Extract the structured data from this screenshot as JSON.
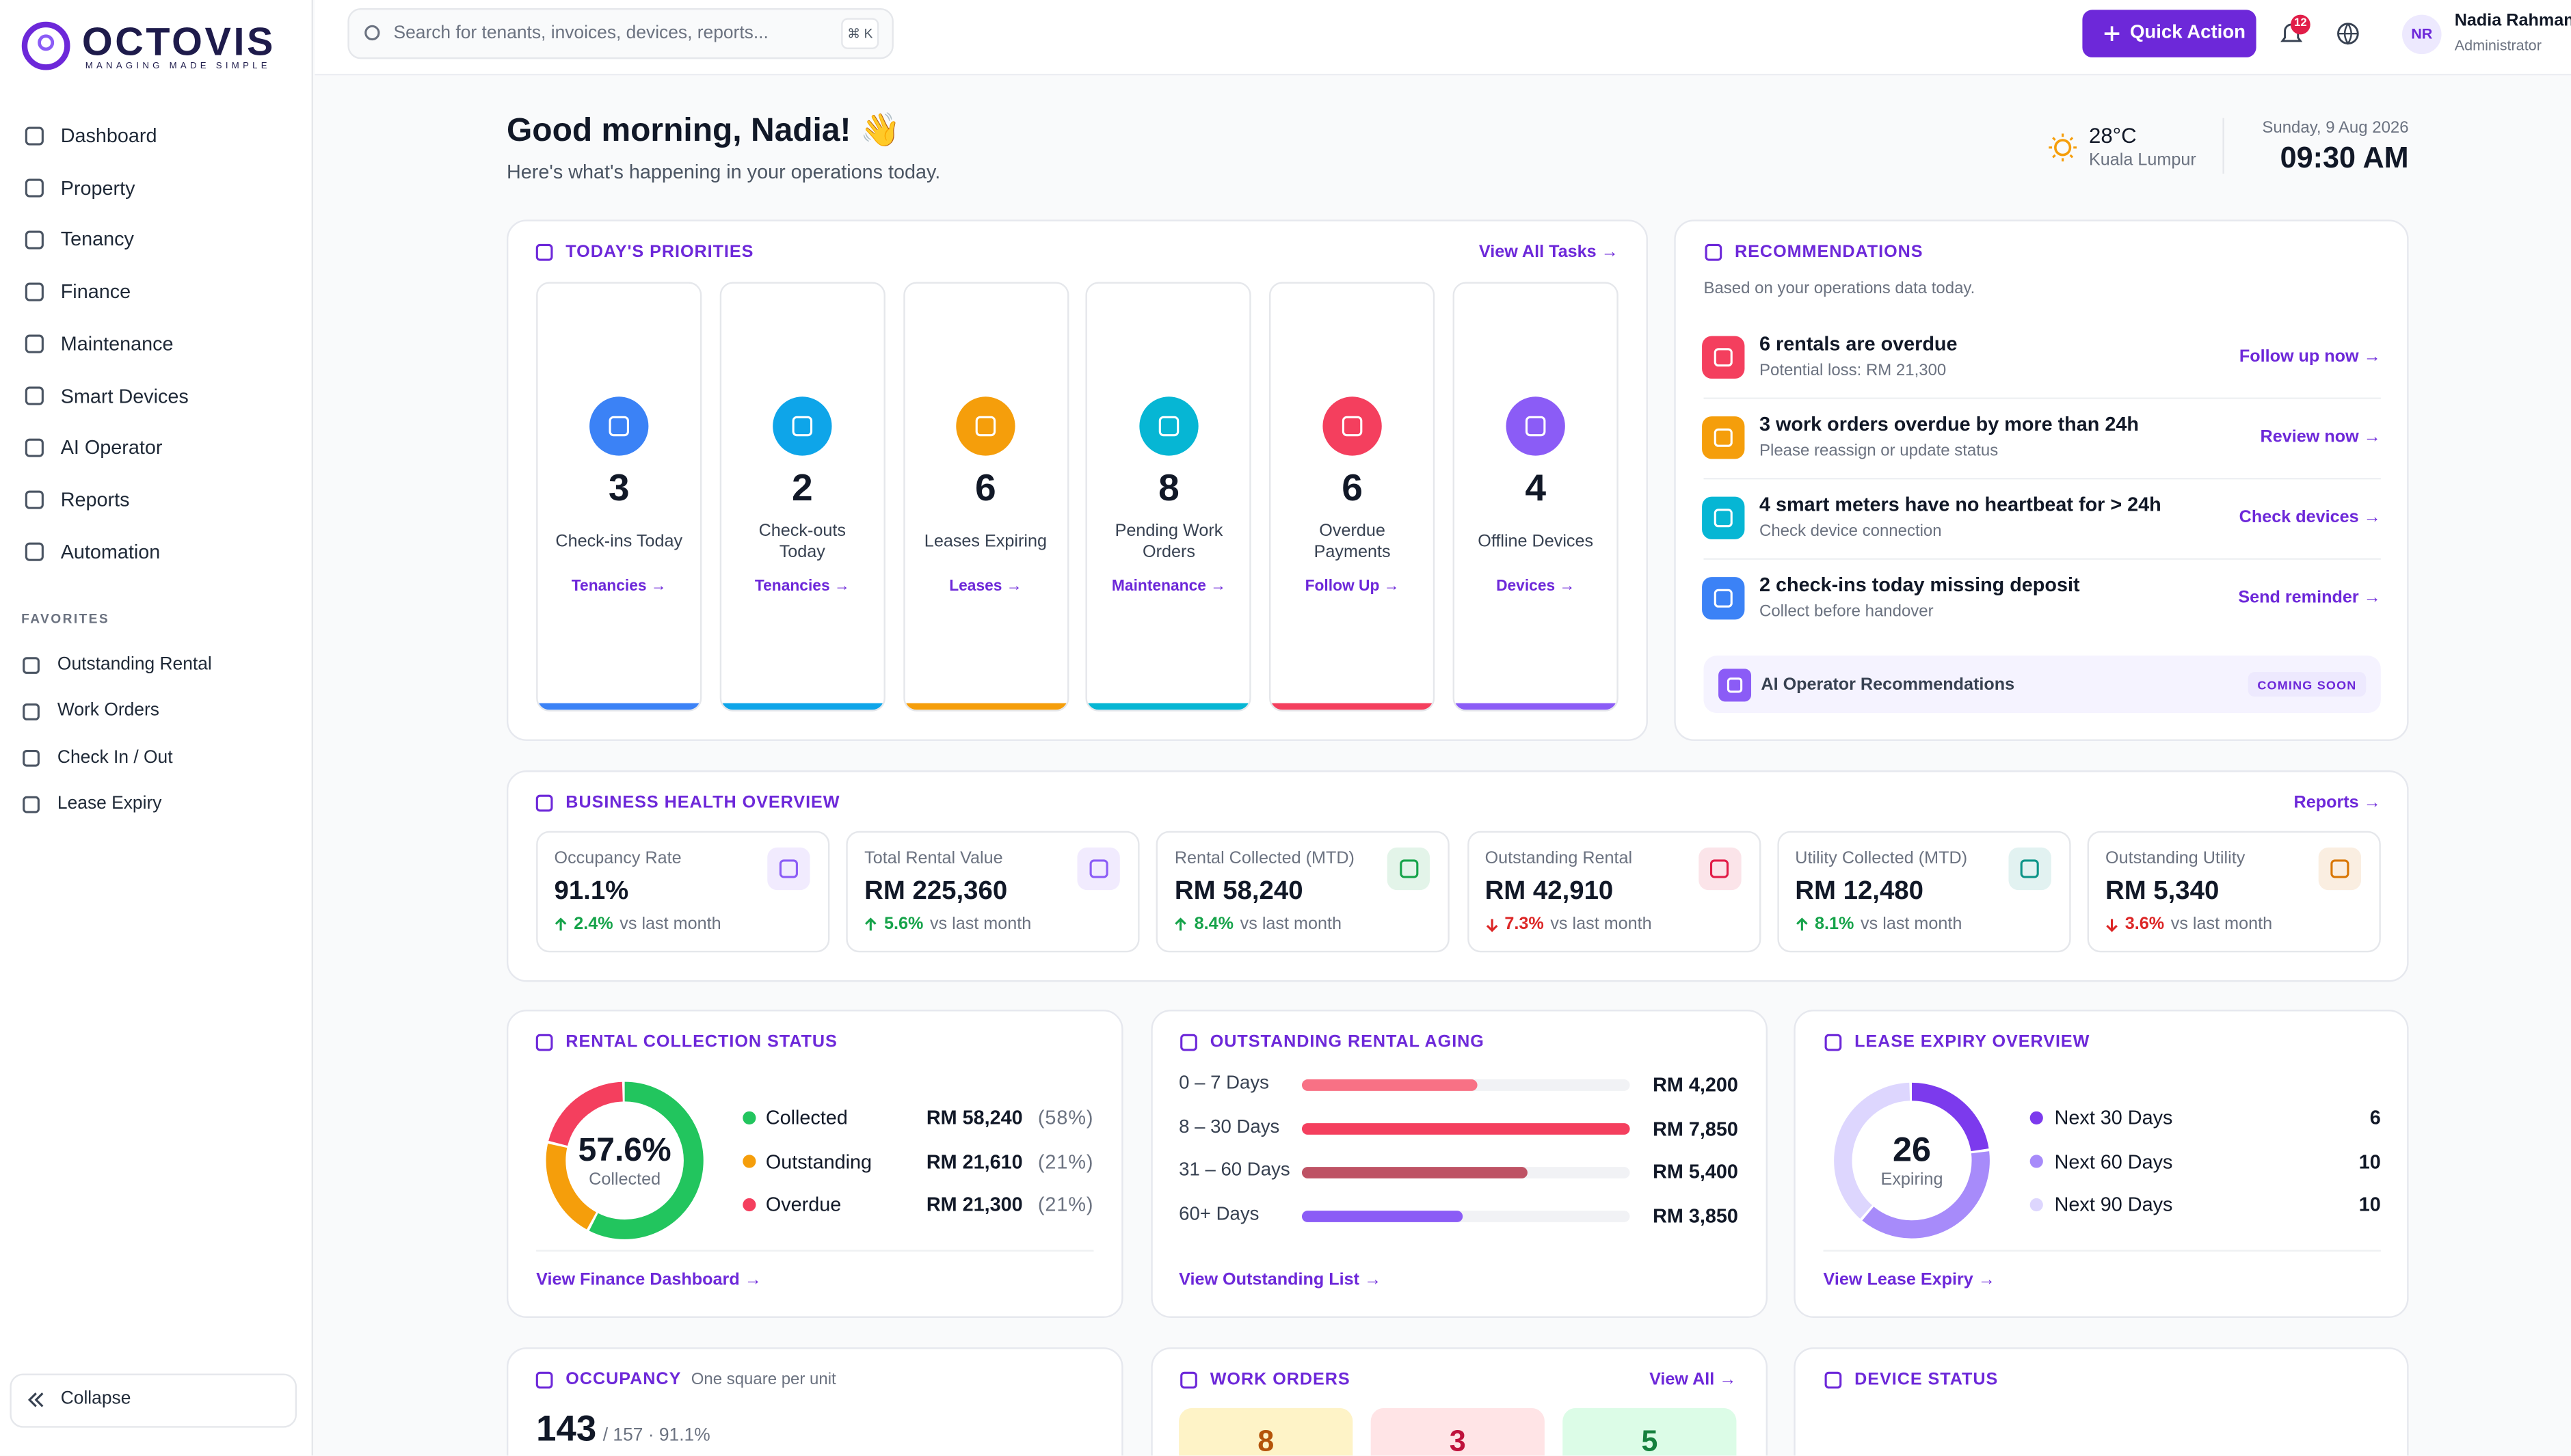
{
  "brand": {
    "name": "OCTOVIS",
    "tagline": "MANAGING MADE SIMPLE"
  },
  "nav": {
    "items": [
      "Dashboard",
      "Property",
      "Tenancy",
      "Finance",
      "Maintenance",
      "Smart Devices",
      "AI Operator",
      "Reports",
      "Automation"
    ],
    "favorites_title": "FAVORITES",
    "favorites": [
      "Outstanding Rental",
      "Work Orders",
      "Check In / Out",
      "Lease Expiry"
    ],
    "collapse": "Collapse"
  },
  "topbar": {
    "search": "Search for tenants, invoices, devices, reports...",
    "shortcut": "⌘ K",
    "quick_action": "Quick Action",
    "notifications": "12",
    "avatar": "NR",
    "user": "Nadia Rahman",
    "role": "Administrator"
  },
  "greeting": {
    "title": "Good morning, Nadia! 👋",
    "subtitle": "Here's what's happening in your operations today.",
    "temp": "28°C",
    "city": "Kuala Lumpur",
    "date": "Sunday, 9 Aug 2026",
    "time": "09:30 AM"
  },
  "priorities": {
    "title": "TODAY'S PRIORITIES",
    "link": "View All Tasks →",
    "items": [
      {
        "count": 3,
        "label": "Check-ins Today",
        "link": "Tenancies →",
        "color": "#3b82f6"
      },
      {
        "count": 2,
        "label": "Check-outs Today",
        "link": "Tenancies →",
        "color": "#0ea5e9"
      },
      {
        "count": 6,
        "label": "Leases Expiring",
        "link": "Leases →",
        "color": "#f59e0b"
      },
      {
        "count": 8,
        "label": "Pending Work Orders",
        "link": "Maintenance →",
        "color": "#06b6d4"
      },
      {
        "count": 6,
        "label": "Overdue Payments",
        "link": "Follow Up →",
        "color": "#f43f5e"
      },
      {
        "count": 4,
        "label": "Offline Devices",
        "link": "Devices →",
        "color": "#8b5cf6"
      }
    ]
  },
  "recommendations": {
    "title": "RECOMMENDATIONS",
    "subtitle": "Based on your operations data today.",
    "items": [
      {
        "title": "6 rentals are overdue",
        "detail": "Potential loss: RM 21,300",
        "action": "Follow up now →",
        "color": "#f43f5e"
      },
      {
        "title": "3 work orders overdue by more than 24h",
        "detail": "Please reassign or update status",
        "action": "Review now →",
        "color": "#f59e0b"
      },
      {
        "title": "4 smart meters have no heartbeat for > 24h",
        "detail": "Check device connection",
        "action": "Check devices →",
        "color": "#06b6d4"
      },
      {
        "title": "2 check-ins today missing deposit",
        "detail": "Collect before handover",
        "action": "Send reminder →",
        "color": "#3b82f6"
      }
    ],
    "ai_banner": "AI Operator Recommendations",
    "badge": "COMING SOON"
  },
  "health": {
    "title": "BUSINESS HEALTH OVERVIEW",
    "link": "Reports →",
    "comparison": "vs last month",
    "cards": [
      {
        "label": "Occupancy Rate",
        "value": "91.1%",
        "change": "2.4%",
        "trend": "up",
        "color": "#8b5cf6"
      },
      {
        "label": "Total Rental Value",
        "value": "RM 225,360",
        "change": "5.6%",
        "trend": "up",
        "color": "#8b5cf6"
      },
      {
        "label": "Rental Collected (MTD)",
        "value": "RM 58,240",
        "change": "8.4%",
        "trend": "up",
        "color": "#16a34a"
      },
      {
        "label": "Outstanding Rental",
        "value": "RM 42,910",
        "change": "7.3%",
        "trend": "down",
        "color": "#e11d48"
      },
      {
        "label": "Utility Collected (MTD)",
        "value": "RM 12,480",
        "change": "8.1%",
        "trend": "up",
        "color": "#0d9488"
      },
      {
        "label": "Outstanding Utility",
        "value": "RM 5,340",
        "change": "3.6%",
        "trend": "down",
        "color": "#d97706"
      }
    ]
  },
  "collection": {
    "title": "RENTAL COLLECTION STATUS",
    "center": "57.6%",
    "center_label": "Collected",
    "series": [
      {
        "name": "Collected",
        "amount": "RM 58,240",
        "value": 58,
        "value_label": "(58%)",
        "color": "#22c55e"
      },
      {
        "name": "Outstanding",
        "amount": "RM 21,610",
        "value": 21,
        "value_label": "(21%)",
        "color": "#f59e0b"
      },
      {
        "name": "Overdue",
        "amount": "RM 21,300",
        "value": 21,
        "value_label": "(21%)",
        "color": "#f43f5e"
      }
    ],
    "link": "View Finance Dashboard →"
  },
  "aging": {
    "title": "OUTSTANDING RENTAL AGING",
    "rows": [
      {
        "name": "0 – 7 Days",
        "value": 4200,
        "value_label": "RM 4,200",
        "color": "#f87185"
      },
      {
        "name": "8 – 30 Days",
        "value": 7850,
        "value_label": "RM 7,850",
        "color": "#f43f5e"
      },
      {
        "name": "31 – 60 Days",
        "value": 5400,
        "value_label": "RM 5,400",
        "color": "#be5264"
      },
      {
        "name": "60+ Days",
        "value": 3850,
        "value_label": "RM 3,850",
        "color": "#8b5cf6"
      }
    ],
    "link": "View Outstanding List →"
  },
  "lease": {
    "title": "LEASE EXPIRY OVERVIEW",
    "total": 26,
    "total_label": "Expiring",
    "series": [
      {
        "name": "Next 30 Days",
        "value": 6,
        "color": "#7c3aed"
      },
      {
        "name": "Next 60 Days",
        "value": 10,
        "color": "#a78bfa"
      },
      {
        "name": "Next 90 Days",
        "value": 10,
        "color": "#ddd6fe"
      }
    ],
    "link": "View Lease Expiry →"
  },
  "occupancy": {
    "title": "OCCUPANCY",
    "note": "One square per unit",
    "occupied": 143,
    "summary": "/ 157 · 91.1%"
  },
  "work_orders": {
    "title": "WORK ORDERS",
    "link": "View All →",
    "counts": [
      {
        "value": 8,
        "color": "#fef3c7",
        "text_color": "#b45309"
      },
      {
        "value": 3,
        "color": "#ffe4e6",
        "text_color": "#be123c"
      },
      {
        "value": 5,
        "color": "#dcfce7",
        "text_color": "#15803d"
      }
    ]
  },
  "device_status": {
    "title": "DEVICE STATUS"
  }
}
